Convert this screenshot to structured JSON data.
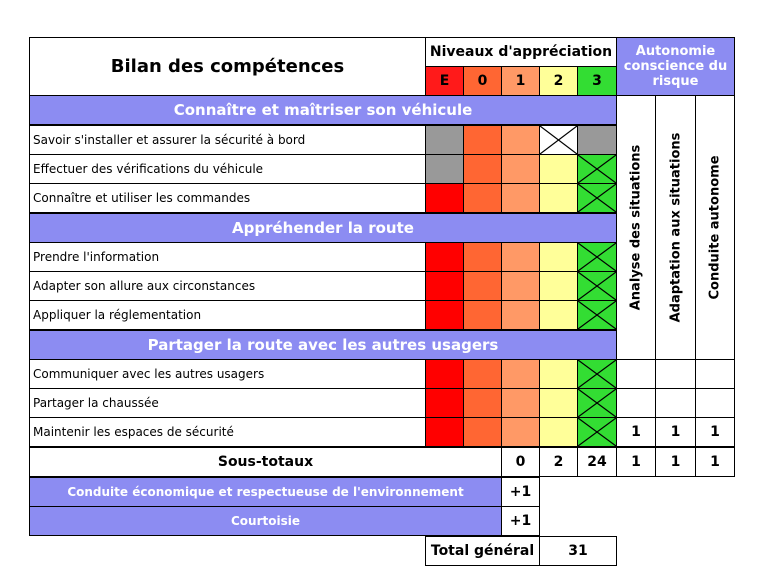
{
  "header": {
    "title": "Bilan des compétences",
    "levels_title": "Niveaux d'appréciation",
    "levels": [
      "E",
      "0",
      "1",
      "2",
      "3"
    ],
    "autonomy_title": "Autonomie conscience du risque",
    "autonomy_columns": [
      "Analyse des situations",
      "Adaptation aux situations",
      "Conduite autonome"
    ]
  },
  "sections": [
    {
      "title": "Connaître et maîtriser son véhicule",
      "skills": [
        "Savoir s'installer et assurer la sécurité à bord",
        "Effectuer des vérifications du véhicule",
        "Connaître et utiliser les commandes"
      ]
    },
    {
      "title": "Appréhender la route",
      "skills": [
        "Prendre l'information",
        "Adapter son allure aux circonstances",
        "Appliquer la réglementation"
      ]
    },
    {
      "title": "Partager la route avec les autres usagers",
      "skills": [
        "Communiquer avec les autres usagers",
        "Partager la chaussée",
        "Maintenir les espaces de sécurité"
      ]
    }
  ],
  "autonomy_row_values": [
    "1",
    "1",
    "1"
  ],
  "subtotals": {
    "label": "Sous-totaux",
    "levels": [
      "0",
      "2",
      "24"
    ],
    "autonomy": [
      "1",
      "1",
      "1"
    ]
  },
  "extras": [
    {
      "label": "Conduite économique et respectueuse de l'environnement",
      "value": "+1"
    },
    {
      "label": "Courtoisie",
      "value": "+1"
    }
  ],
  "total": {
    "label": "Total général",
    "value": "31"
  },
  "colors": {
    "header_purple": "#8c8cf2",
    "level_E": "#ff0000",
    "level_0": "#ff6633",
    "level_1": "#ff9966",
    "level_2": "#ffff99",
    "level_3": "#33dd33",
    "grey": "#999999",
    "header_E": "#ff1a1a",
    "header_0": "#ff6633",
    "header_1": "#ff9966",
    "header_2": "#ffff99",
    "header_3": "#33dd33"
  },
  "grid_fill": [
    [
      "grey",
      "level_0",
      "level_1",
      "white",
      "grey"
    ],
    [
      "grey",
      "level_0",
      "level_1",
      "level_2",
      "level_3"
    ],
    [
      "level_E",
      "level_0",
      "level_1",
      "level_2",
      "level_3"
    ],
    [
      "level_E",
      "level_0",
      "level_1",
      "level_2",
      "level_3"
    ],
    [
      "level_E",
      "level_0",
      "level_1",
      "level_2",
      "level_3"
    ],
    [
      "level_E",
      "level_0",
      "level_1",
      "level_2",
      "level_3"
    ],
    [
      "level_E",
      "level_0",
      "level_1",
      "level_2",
      "level_3"
    ],
    [
      "level_E",
      "level_0",
      "level_1",
      "level_2",
      "level_3"
    ],
    [
      "level_E",
      "level_0",
      "level_1",
      "level_2",
      "level_3"
    ]
  ],
  "grid_marks": [
    3,
    4,
    4,
    4,
    4,
    4,
    4,
    4,
    4
  ]
}
